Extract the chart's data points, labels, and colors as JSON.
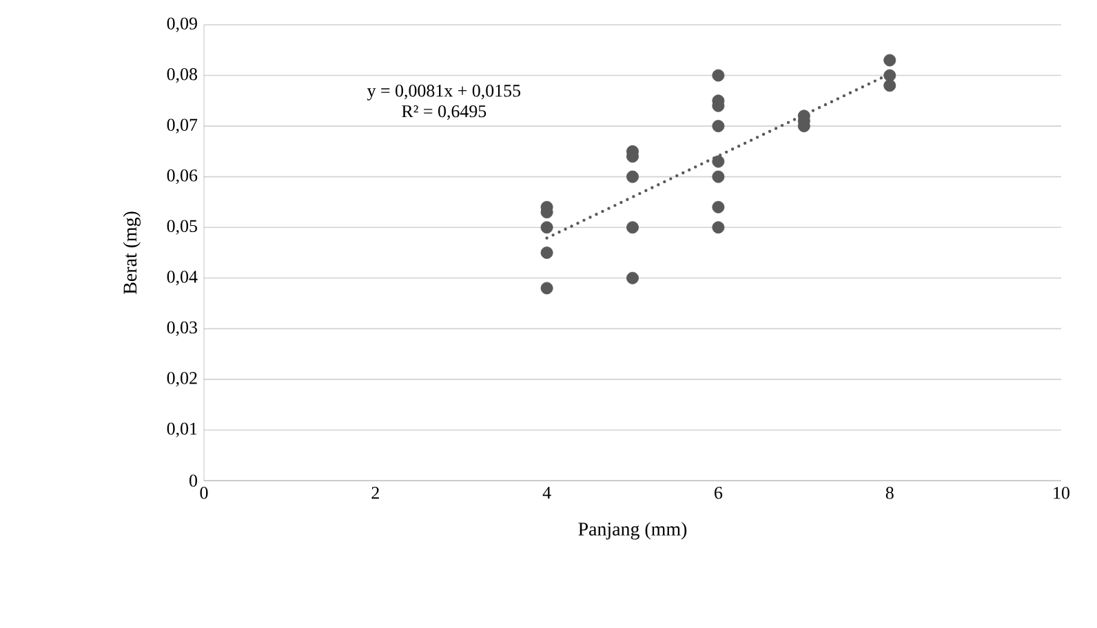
{
  "chart_data": {
    "type": "scatter",
    "xlabel": "Panjang (mm)",
    "ylabel": "Berat (mg)",
    "annotations": [
      "y = 0,0081x + 0,0155",
      "R² = 0,6495"
    ],
    "series": [
      {
        "color": "#595959",
        "marker": "circle",
        "x": [
          4,
          4,
          4,
          4,
          4,
          5,
          5,
          5,
          5,
          5,
          6,
          6,
          6,
          6,
          6,
          6,
          6,
          6,
          7,
          7,
          7,
          8,
          8,
          8
        ],
        "values": [
          0.054,
          0.053,
          0.05,
          0.045,
          0.038,
          0.065,
          0.064,
          0.06,
          0.05,
          0.04,
          0.08,
          0.075,
          0.074,
          0.07,
          0.063,
          0.06,
          0.054,
          0.05,
          0.072,
          0.071,
          0.07,
          0.083,
          0.08,
          0.078
        ]
      },
      {
        "type": "line",
        "color": "#595959",
        "line_style": "dotted",
        "marker": "none",
        "x": [
          4,
          8
        ],
        "values": [
          0.0479,
          0.0803
        ]
      }
    ],
    "xlim": [
      0,
      10
    ],
    "ylim": [
      0,
      0.09
    ],
    "xticks": [
      0,
      2,
      4,
      6,
      8,
      10
    ],
    "yticks": [
      0,
      {
        "value": 0.01,
        "label": "0,01"
      },
      {
        "value": 0.02,
        "label": "0,02"
      },
      {
        "value": 0.03,
        "label": "0,03"
      },
      {
        "value": 0.04,
        "label": "0,04"
      },
      {
        "value": 0.05,
        "label": "0,05"
      },
      {
        "value": 0.06,
        "label": "0,06"
      },
      {
        "value": 0.07,
        "label": "0,07"
      },
      {
        "value": 0.08,
        "label": "0,08"
      },
      {
        "value": 0.09,
        "label": "0,09"
      }
    ],
    "grid": "y"
  }
}
